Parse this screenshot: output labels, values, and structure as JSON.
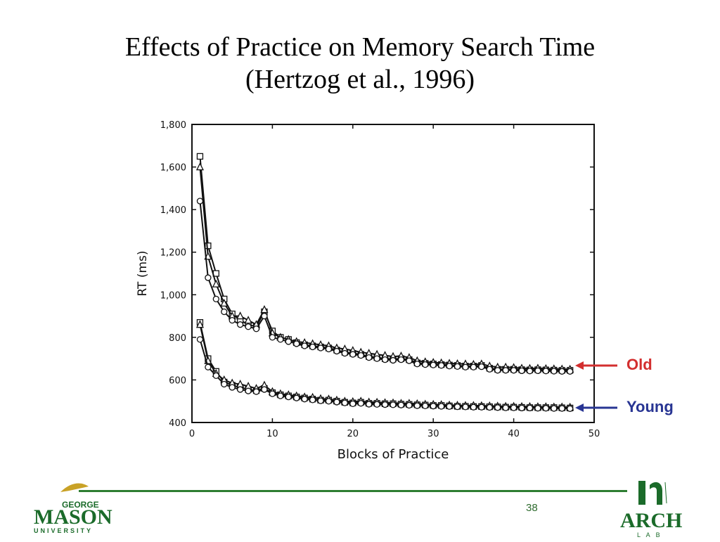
{
  "slide": {
    "title_line1": "Effects of Practice on Memory Search Time",
    "title_line2": "(Hertzog et al., 1996)",
    "page_number": "38"
  },
  "callouts": {
    "old": {
      "label": "Old",
      "color": "#d32f2f"
    },
    "young": {
      "label": "Young",
      "color": "#283593"
    }
  },
  "logos": {
    "left": {
      "line1": "GEORGE",
      "line2": "MASON",
      "line3": "UNIVERSITY",
      "color": "#1b6b2a",
      "accent": "#c9a227"
    },
    "right": {
      "line1": "ARCH",
      "line2": "L A B",
      "color": "#1b6b2a"
    }
  },
  "chart_data": {
    "type": "line",
    "xlabel": "Blocks of Practice",
    "ylabel": "RT (ms)",
    "xlim": [
      0,
      50
    ],
    "ylim": [
      400,
      1800
    ],
    "xticks": [
      0,
      10,
      20,
      30,
      40,
      50
    ],
    "yticks": [
      400,
      600,
      800,
      1000,
      1200,
      1400,
      1600,
      1800
    ],
    "ytick_labels": [
      "400",
      "600",
      "800",
      "1,000",
      "1,200",
      "1,400",
      "1,600",
      "1,800"
    ],
    "x": [
      1,
      2,
      3,
      4,
      5,
      6,
      7,
      8,
      9,
      10,
      11,
      12,
      13,
      14,
      15,
      16,
      17,
      18,
      19,
      20,
      21,
      22,
      23,
      24,
      25,
      26,
      27,
      28,
      29,
      30,
      31,
      32,
      33,
      34,
      35,
      36,
      37,
      38,
      39,
      40,
      41,
      42,
      43,
      44,
      45,
      46,
      47
    ],
    "series": [
      {
        "group": "old",
        "marker": "square",
        "values": [
          1650,
          1230,
          1100,
          980,
          910,
          880,
          860,
          850,
          920,
          830,
          800,
          790,
          775,
          765,
          760,
          755,
          750,
          740,
          730,
          725,
          720,
          710,
          705,
          700,
          698,
          700,
          695,
          680,
          678,
          675,
          672,
          670,
          668,
          665,
          665,
          668,
          655,
          650,
          650,
          650,
          648,
          647,
          648,
          647,
          646,
          645,
          645
        ]
      },
      {
        "group": "old",
        "marker": "triangle",
        "values": [
          1600,
          1180,
          1050,
          960,
          900,
          900,
          880,
          860,
          930,
          820,
          800,
          790,
          780,
          775,
          770,
          765,
          760,
          750,
          745,
          738,
          730,
          725,
          720,
          715,
          710,
          712,
          705,
          690,
          685,
          682,
          680,
          678,
          676,
          675,
          673,
          675,
          665,
          660,
          660,
          658,
          655,
          654,
          655,
          653,
          652,
          651,
          650
        ]
      },
      {
        "group": "old",
        "marker": "circle",
        "values": [
          1440,
          1080,
          980,
          920,
          880,
          860,
          850,
          840,
          900,
          800,
          790,
          780,
          770,
          760,
          755,
          750,
          745,
          735,
          725,
          720,
          715,
          705,
          700,
          695,
          692,
          695,
          690,
          675,
          672,
          670,
          668,
          665,
          663,
          660,
          660,
          662,
          650,
          645,
          645,
          645,
          643,
          642,
          643,
          642,
          641,
          640,
          640
        ]
      },
      {
        "group": "young",
        "marker": "square",
        "values": [
          870,
          700,
          640,
          590,
          575,
          565,
          555,
          550,
          560,
          540,
          530,
          525,
          520,
          515,
          510,
          505,
          505,
          500,
          495,
          492,
          495,
          490,
          490,
          488,
          488,
          486,
          485,
          483,
          482,
          480,
          480,
          478,
          476,
          476,
          475,
          475,
          474,
          473,
          472,
          472,
          471,
          470,
          470,
          470,
          470,
          469,
          468
        ]
      },
      {
        "group": "young",
        "marker": "triangle",
        "values": [
          860,
          690,
          630,
          600,
          585,
          580,
          570,
          560,
          575,
          545,
          535,
          530,
          525,
          520,
          518,
          512,
          510,
          505,
          500,
          498,
          500,
          496,
          495,
          493,
          492,
          490,
          490,
          488,
          486,
          485,
          484,
          482,
          481,
          480,
          480,
          479,
          478,
          477,
          476,
          476,
          475,
          475,
          474,
          474,
          473,
          473,
          472
        ]
      },
      {
        "group": "young",
        "marker": "circle",
        "values": [
          790,
          660,
          620,
          580,
          565,
          555,
          548,
          545,
          555,
          535,
          525,
          520,
          515,
          510,
          506,
          502,
          500,
          496,
          492,
          488,
          490,
          486,
          485,
          484,
          483,
          482,
          481,
          479,
          478,
          477,
          476,
          475,
          474,
          473,
          472,
          472,
          471,
          470,
          469,
          469,
          468,
          468,
          467,
          467,
          466,
          466,
          465
        ]
      }
    ]
  }
}
